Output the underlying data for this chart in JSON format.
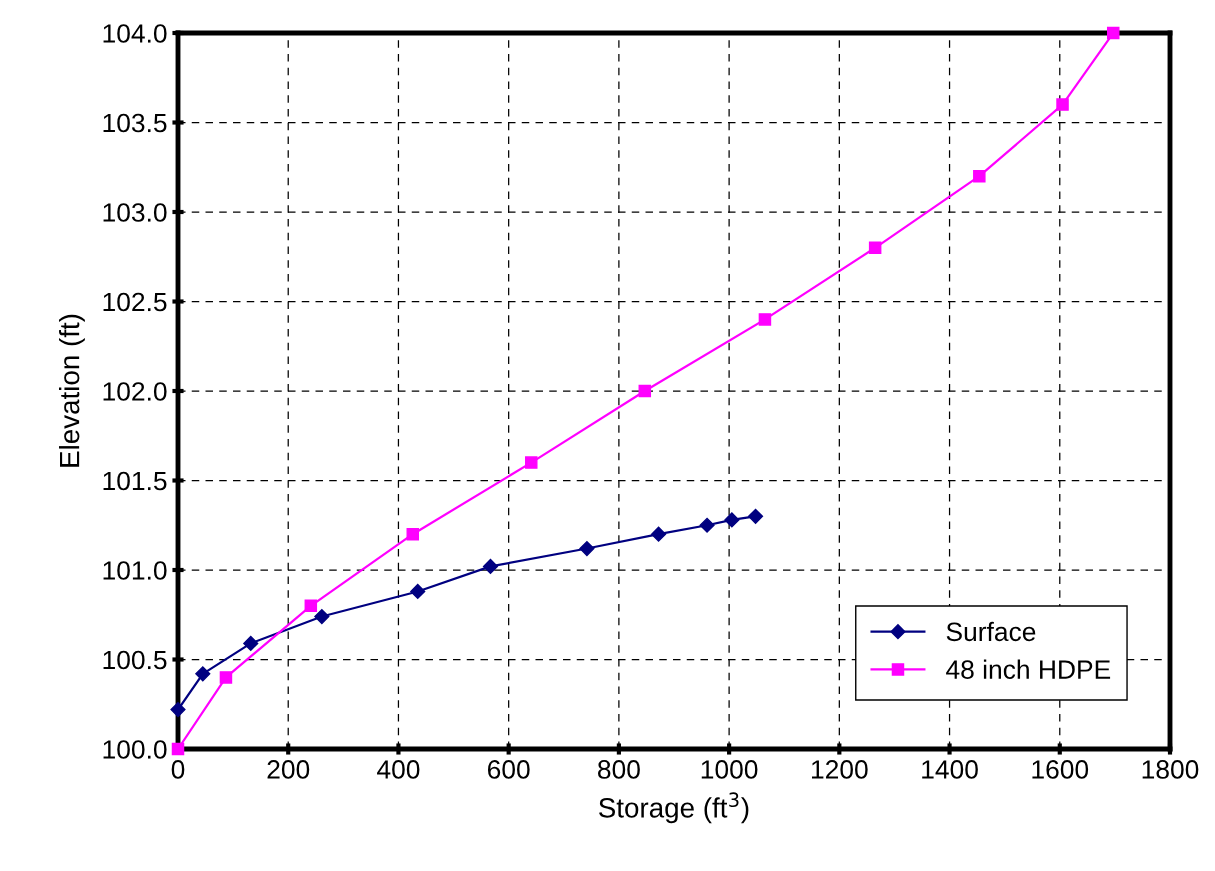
{
  "chart_data": {
    "type": "line",
    "xlabel": "Storage (ft$^{3}$)",
    "ylabel": "Elevation (ft)",
    "xlim": [
      0,
      1800
    ],
    "xticks": [
      0,
      200,
      400,
      600,
      800,
      1000,
      1200,
      1400,
      1600,
      1800
    ],
    "ylim": [
      100,
      104
    ],
    "yticks": [
      {
        "value": 100,
        "label": "100.0"
      },
      {
        "value": 100.5,
        "label": "100.5"
      },
      {
        "value": 101,
        "label": "101.0"
      },
      {
        "value": 101.5,
        "label": "101.5"
      },
      {
        "value": 102,
        "label": "102.0"
      },
      {
        "value": 102.5,
        "label": "102.5"
      },
      {
        "value": 103,
        "label": "103.0"
      },
      {
        "value": 103.5,
        "label": "103.5"
      },
      {
        "value": 104,
        "label": "104.0"
      }
    ],
    "grid": true,
    "legend": "bottom right",
    "series": [
      {
        "name": "Surface",
        "color": "#000080",
        "marker": "diamond",
        "x": [
          0,
          45,
          132,
          261,
          435,
          567,
          742,
          872,
          960,
          1005,
          1048
        ],
        "values": [
          100.22,
          100.42,
          100.59,
          100.74,
          100.88,
          101.02,
          101.12,
          101.2,
          101.25,
          101.28,
          101.3
        ]
      },
      {
        "name": "48 inch HDPE",
        "color": "#ff00ff",
        "marker": "square",
        "x": [
          0,
          87,
          241,
          426,
          641,
          847,
          1065,
          1265,
          1454,
          1605,
          1697
        ],
        "values": [
          100.0,
          100.4,
          100.8,
          101.2,
          101.6,
          102.0,
          102.4,
          102.8,
          103.2,
          103.6,
          104.0
        ]
      }
    ]
  }
}
